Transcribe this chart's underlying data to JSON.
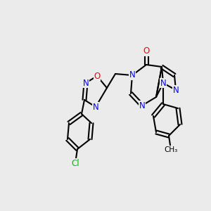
{
  "bg_color": "#ebebeb",
  "bond_color": "#000000",
  "bond_lw": 1.5,
  "atom_colors": {
    "N": "#0000ff",
    "O": "#ff0000",
    "Cl": "#00bb00",
    "C": "#000000"
  },
  "figsize": [
    3.0,
    3.0
  ],
  "dpi": 100,
  "label_fontsize": 8.5,
  "label_fontsize_small": 7.5
}
